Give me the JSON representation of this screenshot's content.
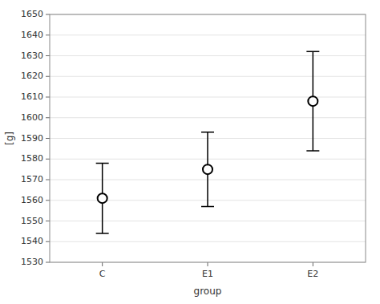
{
  "chart_data": {
    "type": "errorbar",
    "categories": [
      "C",
      "E1",
      "E2"
    ],
    "values": [
      1561,
      1575,
      1608
    ],
    "errors_upper": [
      17,
      18,
      24
    ],
    "errors_lower": [
      17,
      18,
      24
    ],
    "xlabel": "group",
    "ylabel": "[g]",
    "ylim": [
      1530,
      1650
    ],
    "yticks": [
      1530,
      1540,
      1550,
      1560,
      1570,
      1580,
      1590,
      1600,
      1610,
      1620,
      1630,
      1640,
      1650
    ],
    "grid": true,
    "color": "black",
    "marker": "circle"
  }
}
